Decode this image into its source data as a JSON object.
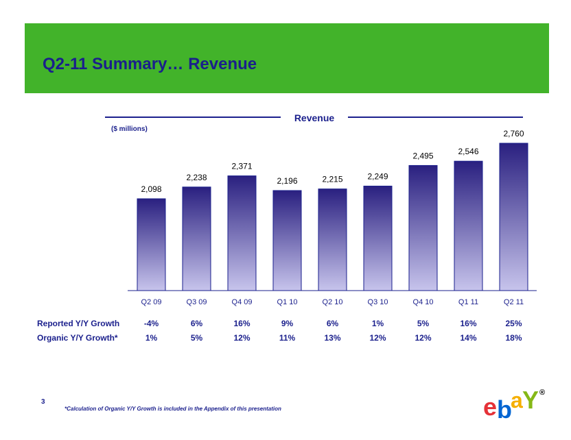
{
  "slide": {
    "title": "Q2-11 Summary… Revenue",
    "page_number": "3",
    "footnote": "*Calculation of Organic Y/Y Growth is included in the Appendix of this presentation",
    "logo_text": "ebay"
  },
  "colors": {
    "header_band": "#42b32a",
    "title": "#1a1f8c",
    "bar_top": "#2a2080",
    "bar_bottom": "#c7c4ec"
  },
  "chart_data": {
    "type": "bar",
    "title": "Revenue",
    "units": "($ millions)",
    "categories": [
      "Q2 09",
      "Q3 09",
      "Q4 09",
      "Q1 10",
      "Q2 10",
      "Q3 10",
      "Q4 10",
      "Q1 11",
      "Q2 11"
    ],
    "values": [
      2098,
      2238,
      2371,
      2196,
      2215,
      2249,
      2495,
      2546,
      2760
    ],
    "value_labels": [
      "2,098",
      "2,238",
      "2,371",
      "2,196",
      "2,215",
      "2,249",
      "2,495",
      "2,546",
      "2,760"
    ],
    "grid": false
  },
  "metrics": [
    {
      "label": "Reported Y/Y Growth",
      "values": [
        "-4%",
        "6%",
        "16%",
        "9%",
        "6%",
        "1%",
        "5%",
        "16%",
        "25%"
      ]
    },
    {
      "label": "Organic Y/Y Growth*",
      "values": [
        "1%",
        "5%",
        "12%",
        "11%",
        "13%",
        "12%",
        "12%",
        "14%",
        "18%"
      ]
    }
  ]
}
